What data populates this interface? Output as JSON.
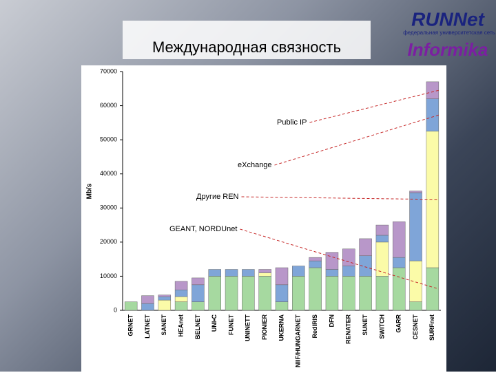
{
  "logo": {
    "brand": "RUNNet",
    "subtitle": "федеральная университетская сеть",
    "name": "Informika"
  },
  "chart_data": {
    "type": "bar",
    "stacked": true,
    "title": "Международная связность",
    "ylabel": "Mb/s",
    "categories": [
      "GRNET",
      "LATNET",
      "SANET",
      "HEAnet",
      "BELNET",
      "UNI•C",
      "FUNET",
      "UNINETT",
      "PIONIER",
      "UKERNA",
      "NIIF/HUNGARNET",
      "RedIRIS",
      "DFN",
      "RENATER",
      "SUNET",
      "SWITCH",
      "GARR",
      "CESNET",
      "SURFnet"
    ],
    "series": [
      {
        "name": "GEANT, NORDUnet",
        "color": "#a6d9a0",
        "values": [
          2500,
          0,
          0,
          2500,
          2500,
          10000,
          10000,
          10000,
          10000,
          2500,
          10000,
          12500,
          10000,
          10000,
          10000,
          10000,
          12500,
          2500,
          12500
        ]
      },
      {
        "name": "Другие REN",
        "color": "#fbfba8",
        "values": [
          0,
          0,
          3000,
          1500,
          0,
          0,
          0,
          0,
          1000,
          0,
          0,
          0,
          0,
          0,
          0,
          10000,
          0,
          12000,
          40000
        ]
      },
      {
        "name": "eXchange",
        "color": "#7fa5d8",
        "values": [
          0,
          2000,
          1000,
          2000,
          5000,
          2000,
          2000,
          2000,
          0,
          5000,
          3000,
          2000,
          2000,
          3000,
          6000,
          2000,
          3000,
          20000,
          9500
        ]
      },
      {
        "name": "Public IP",
        "color": "#b897c9",
        "values": [
          0,
          2300,
          500,
          2500,
          2000,
          0,
          0,
          0,
          1000,
          5000,
          0,
          1000,
          5000,
          5000,
          5000,
          3000,
          10500,
          500,
          5000
        ]
      }
    ],
    "ylim": [
      0,
      70000
    ],
    "yticks": [
      0,
      10000,
      20000,
      30000,
      40000,
      50000,
      60000,
      70000
    ]
  }
}
